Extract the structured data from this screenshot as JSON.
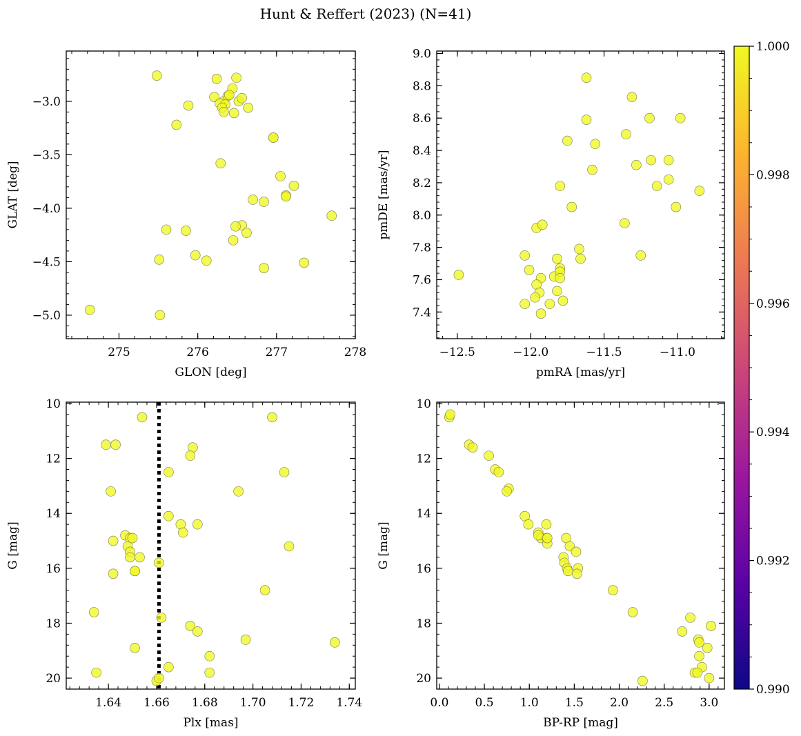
{
  "title": "Hunt & Reffert (2023) (N=41)",
  "colors": {
    "point": "#f0f921",
    "edge": "#7a7a50"
  },
  "colorbar": {
    "ticks": [
      "1.000",
      "0.998",
      "0.996",
      "0.994",
      "0.992",
      "0.990"
    ],
    "min": 0.99,
    "max": 1.0,
    "colormap": "plasma",
    "stops": [
      "#0d0887",
      "#5c01a6",
      "#9c179e",
      "#cc4778",
      "#ed7953",
      "#fdb42f",
      "#f0f921"
    ]
  },
  "chart_data": [
    {
      "type": "scatter",
      "name": "sky",
      "xlabel": "GLON [deg]",
      "ylabel": "GLAT [deg]",
      "xlim": [
        274.33,
        278.0
      ],
      "ylim": [
        -5.22,
        -2.53
      ],
      "xticks": [
        275,
        276,
        277,
        278
      ],
      "xtick_labels": [
        "275",
        "276",
        "277",
        "278"
      ],
      "yticks": [
        -3.0,
        -3.5,
        -4.0,
        -4.5,
        -5.0
      ],
      "ytick_labels": [
        "−3.0",
        "−3.5",
        "−4.0",
        "−4.5",
        "−5.0"
      ],
      "y_inverted": false,
      "x": [
        275.48,
        276.24,
        276.49,
        276.44,
        276.21,
        276.33,
        276.52,
        276.56,
        276.38,
        276.28,
        276.35,
        276.31,
        276.33,
        276.46,
        276.64,
        275.88,
        275.73,
        276.96,
        276.96,
        276.29,
        277.05,
        277.22,
        277.12,
        277.12,
        276.7,
        276.84,
        276.56,
        276.48,
        276.62,
        275.6,
        275.85,
        277.7,
        276.45,
        275.97,
        276.11,
        275.51,
        277.35,
        276.84,
        274.63,
        275.52,
        276.4
      ],
      "y": [
        -2.76,
        -2.79,
        -2.78,
        -2.88,
        -2.96,
        -3.0,
        -3.0,
        -2.97,
        -2.95,
        -3.02,
        -3.03,
        -3.06,
        -3.1,
        -3.11,
        -3.06,
        -3.04,
        -3.22,
        -3.34,
        -3.34,
        -3.58,
        -3.7,
        -3.79,
        -3.88,
        -3.89,
        -3.92,
        -3.94,
        -4.16,
        -4.17,
        -4.23,
        -4.2,
        -4.21,
        -4.07,
        -4.3,
        -4.44,
        -4.49,
        -4.48,
        -4.51,
        -4.56,
        -4.95,
        -5.0,
        -2.94
      ]
    },
    {
      "type": "scatter",
      "name": "proper-motion",
      "xlabel": "pmRA [mas/yr]",
      "ylabel": "pmDE [mas/yr]",
      "xlim": [
        -12.64,
        -10.68
      ],
      "ylim": [
        7.235,
        9.015
      ],
      "xticks": [
        -12.5,
        -12.0,
        -11.5,
        -11.0
      ],
      "xtick_labels": [
        "−12.5",
        "−12.0",
        "−11.5",
        "−11.0"
      ],
      "yticks": [
        7.4,
        7.6,
        7.8,
        8.0,
        8.2,
        8.4,
        8.6,
        8.8,
        9.0
      ],
      "ytick_labels": [
        "7.4",
        "7.6",
        "7.8",
        "8.0",
        "8.2",
        "8.4",
        "8.6",
        "8.8",
        "9.0"
      ],
      "y_inverted": false,
      "x": [
        -11.62,
        -11.31,
        -11.62,
        -11.19,
        -10.98,
        -11.35,
        -11.75,
        -11.56,
        -11.18,
        -11.28,
        -11.06,
        -11.58,
        -11.06,
        -11.8,
        -11.14,
        -10.85,
        -11.72,
        -11.01,
        -11.36,
        -11.96,
        -11.92,
        -11.67,
        -12.04,
        -11.66,
        -11.25,
        -11.82,
        -12.01,
        -11.8,
        -11.84,
        -11.8,
        -11.8,
        -11.93,
        -11.96,
        -12.49,
        -11.82,
        -11.94,
        -11.97,
        -11.78,
        -12.04,
        -11.87,
        -11.93
      ],
      "y": [
        8.85,
        8.73,
        8.59,
        8.6,
        8.6,
        8.5,
        8.46,
        8.44,
        8.34,
        8.31,
        8.34,
        8.28,
        8.22,
        8.18,
        8.18,
        8.15,
        8.05,
        8.05,
        7.95,
        7.92,
        7.94,
        7.79,
        7.75,
        7.73,
        7.75,
        7.73,
        7.66,
        7.67,
        7.62,
        7.65,
        7.61,
        7.61,
        7.57,
        7.63,
        7.53,
        7.52,
        7.49,
        7.47,
        7.45,
        7.45,
        7.39
      ]
    },
    {
      "type": "scatter",
      "name": "parallax-magnitude",
      "xlabel": "Plx [mas]",
      "ylabel": "G [mag]",
      "xlim": [
        1.6225,
        1.7425
      ],
      "ylim": [
        9.95,
        20.4
      ],
      "xticks": [
        1.64,
        1.66,
        1.68,
        1.7,
        1.72,
        1.74
      ],
      "xtick_labels": [
        "1.64",
        "1.66",
        "1.68",
        "1.70",
        "1.72",
        "1.74"
      ],
      "yticks": [
        10,
        12,
        14,
        16,
        18,
        20
      ],
      "ytick_labels": [
        "10",
        "12",
        "14",
        "16",
        "18",
        "20"
      ],
      "y_inverted": true,
      "vline": 1.661,
      "x": [
        1.654,
        1.708,
        1.639,
        1.643,
        1.675,
        1.674,
        1.665,
        1.713,
        1.641,
        1.694,
        1.665,
        1.67,
        1.677,
        1.671,
        1.647,
        1.649,
        1.642,
        1.65,
        1.648,
        1.649,
        1.649,
        1.653,
        1.715,
        1.651,
        1.651,
        1.661,
        1.642,
        1.705,
        1.634,
        1.662,
        1.674,
        1.677,
        1.697,
        1.734,
        1.651,
        1.682,
        1.665,
        1.635,
        1.682,
        1.66,
        1.661
      ],
      "y": [
        10.5,
        10.5,
        11.5,
        11.5,
        11.6,
        11.9,
        12.5,
        12.5,
        13.2,
        13.2,
        14.1,
        14.4,
        14.4,
        14.7,
        14.8,
        14.9,
        15.0,
        14.9,
        15.2,
        15.4,
        15.6,
        15.6,
        15.2,
        16.1,
        16.1,
        15.8,
        16.2,
        16.8,
        17.6,
        17.8,
        18.1,
        18.3,
        18.6,
        18.7,
        18.9,
        19.2,
        19.6,
        19.8,
        19.8,
        20.1,
        20.0
      ]
    },
    {
      "type": "scatter",
      "name": "color-magnitude",
      "xlabel": "BP-RP [mag]",
      "ylabel": "G [mag]",
      "xlim": [
        -0.03,
        3.17
      ],
      "ylim": [
        9.95,
        20.4
      ],
      "xticks": [
        0.0,
        0.5,
        1.0,
        1.5,
        2.0,
        2.5,
        3.0
      ],
      "xtick_labels": [
        "0.0",
        "0.5",
        "1.0",
        "1.5",
        "2.0",
        "2.5",
        "3.0"
      ],
      "yticks": [
        10,
        12,
        14,
        16,
        18,
        20
      ],
      "ytick_labels": [
        "10",
        "12",
        "14",
        "16",
        "18",
        "20"
      ],
      "y_inverted": true,
      "x": [
        0.11,
        0.12,
        0.33,
        0.37,
        0.55,
        0.62,
        0.66,
        0.77,
        0.75,
        0.95,
        0.99,
        1.19,
        1.1,
        1.13,
        1.19,
        1.41,
        1.45,
        1.2,
        1.38,
        1.52,
        1.39,
        1.42,
        1.54,
        1.43,
        1.53,
        1.93,
        2.15,
        2.79,
        2.7,
        3.02,
        2.88,
        2.89,
        2.98,
        2.89,
        2.92,
        2.84,
        2.87,
        3.0,
        2.26,
        1.1,
        1.2
      ],
      "y": [
        10.5,
        10.4,
        11.5,
        11.6,
        11.9,
        12.4,
        12.5,
        13.1,
        13.2,
        14.1,
        14.4,
        14.4,
        14.7,
        14.9,
        14.9,
        14.9,
        15.2,
        15.1,
        15.6,
        15.4,
        15.8,
        16.0,
        16.0,
        16.1,
        16.2,
        16.8,
        17.6,
        17.8,
        18.3,
        18.1,
        18.6,
        18.7,
        18.9,
        19.2,
        19.6,
        19.8,
        19.8,
        20.0,
        20.1,
        14.8,
        14.9
      ]
    }
  ]
}
